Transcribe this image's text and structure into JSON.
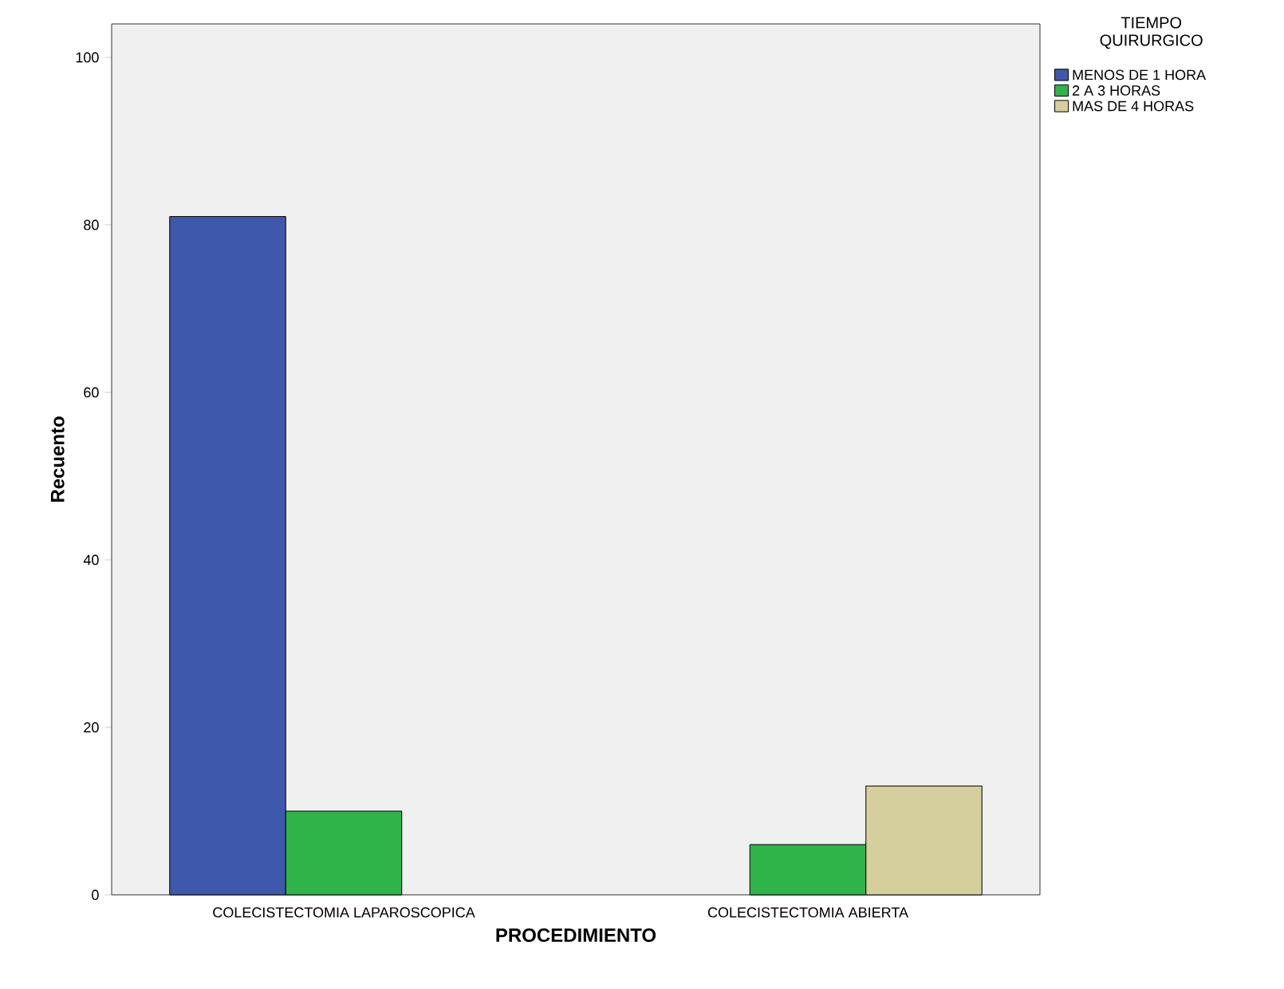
{
  "chart_data": {
    "type": "bar",
    "xlabel": "PROCEDIMIENTO",
    "ylabel": "Recuento",
    "legend_title": "TIEMPO QUIRURGICO",
    "categories": [
      "COLECISTECTOMIA LAPAROSCOPICA",
      "COLECISTECTOMIA ABIERTA"
    ],
    "series": [
      {
        "name": "MENOS DE 1 HORA",
        "color": "#3e58ac",
        "values": [
          81,
          null
        ]
      },
      {
        "name": "2 A 3 HORAS",
        "color": "#2fb44a",
        "values": [
          10,
          6
        ]
      },
      {
        "name": "MAS DE 4 HORAS",
        "color": "#d5ce9d",
        "values": [
          null,
          13
        ]
      }
    ],
    "ylim": [
      0,
      104
    ],
    "yticks": [
      0,
      20,
      40,
      60,
      80,
      100
    ],
    "grid": false,
    "legend": "top right"
  }
}
